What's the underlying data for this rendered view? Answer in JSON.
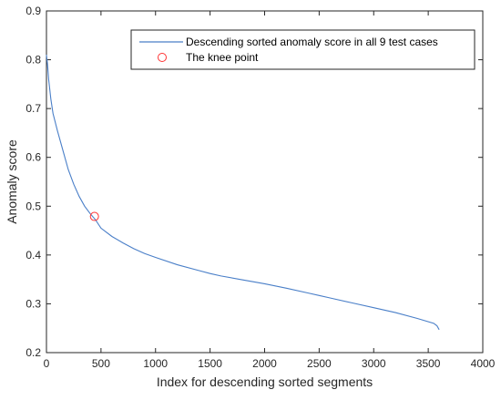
{
  "chart_data": {
    "type": "line",
    "xlabel": "Index for descending sorted segments",
    "ylabel": "Anomaly score",
    "xlim": [
      0,
      4000
    ],
    "ylim": [
      0.2,
      0.9
    ],
    "xticks": [
      0,
      500,
      1000,
      1500,
      2000,
      2500,
      3000,
      3500,
      4000
    ],
    "yticks": [
      0.2,
      0.3,
      0.4,
      0.5,
      0.6,
      0.7,
      0.8,
      0.9
    ],
    "xtick_labels": [
      "0",
      "500",
      "1000",
      "1500",
      "2000",
      "2500",
      "3000",
      "3500",
      "4000"
    ],
    "ytick_labels": [
      "0.2",
      "0.3",
      "0.4",
      "0.5",
      "0.6",
      "0.7",
      "0.8",
      "0.9"
    ],
    "grid": false,
    "legend_position": "top-right",
    "series": [
      {
        "name": "Descending sorted anomaly score in all 9 test cases",
        "type": "line",
        "color": "#4a7fc8",
        "x": [
          0,
          10,
          20,
          40,
          60,
          100,
          150,
          200,
          250,
          300,
          350,
          400,
          450,
          500,
          600,
          700,
          800,
          900,
          1000,
          1200,
          1400,
          1500,
          1600,
          1800,
          2000,
          2200,
          2400,
          2500,
          2600,
          2800,
          3000,
          3200,
          3400,
          3550,
          3580,
          3600
        ],
        "y": [
          0.81,
          0.79,
          0.76,
          0.72,
          0.69,
          0.655,
          0.615,
          0.575,
          0.545,
          0.52,
          0.5,
          0.485,
          0.472,
          0.455,
          0.438,
          0.425,
          0.413,
          0.403,
          0.395,
          0.38,
          0.368,
          0.362,
          0.357,
          0.349,
          0.341,
          0.332,
          0.322,
          0.317,
          0.312,
          0.302,
          0.292,
          0.282,
          0.27,
          0.26,
          0.255,
          0.247
        ]
      },
      {
        "name": "The knee point",
        "type": "scatter",
        "marker": "circle",
        "color": "#ff3333",
        "x": [
          440
        ],
        "y": [
          0.479
        ]
      }
    ]
  }
}
